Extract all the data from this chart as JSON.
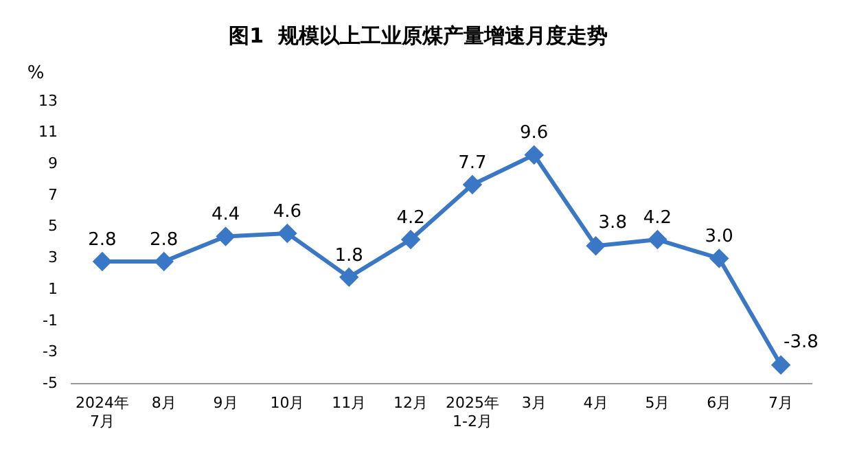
{
  "chart_data": {
    "type": "line",
    "title": "图1  规模以上工业原煤产量增速月度走势",
    "ylabel": "%",
    "categories": [
      "2024年\n7月",
      "8月",
      "9月",
      "10月",
      "11月",
      "12月",
      "2025年\n1-2月",
      "3月",
      "4月",
      "5月",
      "6月",
      "7月"
    ],
    "series": [
      {
        "color": "#3a78c6",
        "values": [
          2.8,
          2.8,
          4.4,
          4.6,
          1.8,
          4.2,
          7.7,
          9.6,
          3.8,
          4.2,
          3.0,
          -3.8
        ],
        "value_labels": [
          "2.8",
          "2.8",
          "4.4",
          "4.6",
          "1.8",
          "4.2",
          "7.7",
          "9.6",
          "3.8",
          "4.2",
          "3.0",
          "-3.8"
        ]
      }
    ],
    "ylim": [
      -5,
      13
    ],
    "yticks": [
      -5,
      -3,
      -1,
      1,
      3,
      5,
      7,
      9,
      11,
      13
    ],
    "grid": false,
    "legend": false,
    "marker": "diamond",
    "line_style": "solid"
  }
}
